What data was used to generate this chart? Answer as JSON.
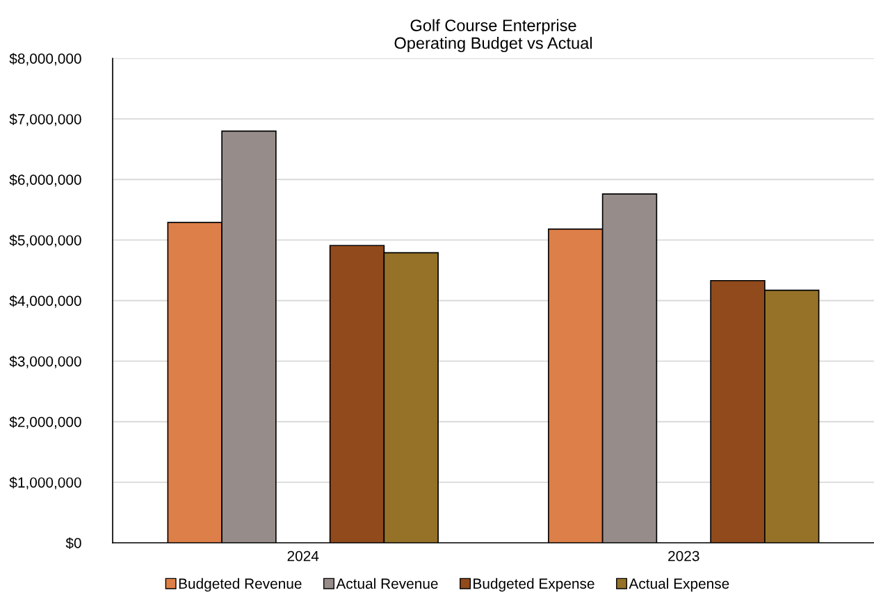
{
  "chart_data": {
    "type": "bar",
    "title": "Golf Course Enterprise\nOperating Budget vs Actual",
    "categories": [
      "2024",
      "2023"
    ],
    "series": [
      {
        "name": "Budgeted Revenue",
        "color": "#dd7f48",
        "values": [
          5290000,
          5180000
        ]
      },
      {
        "name": "Actual Revenue",
        "color": "#968d8b",
        "values": [
          6800000,
          5760000
        ]
      },
      {
        "name": "Budgeted Expense",
        "color": "#914a1c",
        "values": [
          4910000,
          4330000
        ]
      },
      {
        "name": "Actual Expense",
        "color": "#957228",
        "values": [
          4790000,
          4170000
        ]
      }
    ],
    "ylim": [
      0,
      8000000
    ],
    "yticks": [
      {
        "value": 0,
        "label": "$0"
      },
      {
        "value": 1000000,
        "label": "$1,000,000"
      },
      {
        "value": 2000000,
        "label": "$2,000,000"
      },
      {
        "value": 3000000,
        "label": "$3,000,000"
      },
      {
        "value": 4000000,
        "label": "$4,000,000"
      },
      {
        "value": 5000000,
        "label": "$5,000,000"
      },
      {
        "value": 6000000,
        "label": "$6,000,000"
      },
      {
        "value": 7000000,
        "label": "$7,000,000"
      },
      {
        "value": 8000000,
        "label": "$8,000,000"
      }
    ],
    "grid": "y",
    "legend": "bottom"
  }
}
